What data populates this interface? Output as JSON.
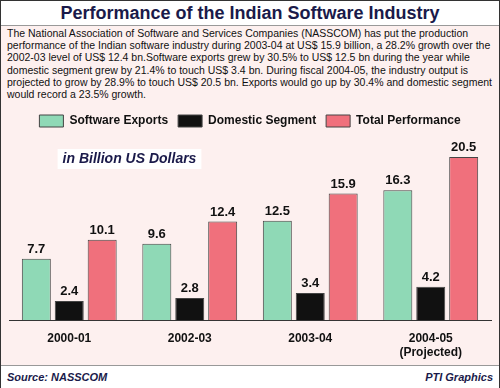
{
  "chart_data": {
    "type": "bar",
    "title": "Performance of the Indian Software Industry",
    "description": "The National Association of Software and Services Companies (NASSCOM) has put the production performance of the Indian software industry during 2003-04 at US$ 15.9 billion, a 28.2% growth over the 2002-03 level of US$ 12.4 bn.Software exports grew by 30.5% to US$ 12.5 bn during the year while domestic segment grew by 21.4% to touch US$ 3.4 bn. During fiscal 2004-05, the industry output is projected to grow by 28.9% to touch US$ 20.5 bn. Exports would go up by 30.4% and domestic segment would record a 23.5% growth.",
    "categories": [
      "2000-01",
      "2002-03",
      "2003-04",
      [
        "2004-05",
        "(Projected)"
      ]
    ],
    "series": [
      {
        "name": "Software Exports",
        "color": "#8fd9b6",
        "values": [
          7.7,
          9.6,
          12.5,
          16.3
        ]
      },
      {
        "name": "Domestic Segment",
        "color": "#111111",
        "values": [
          2.4,
          2.8,
          3.4,
          4.2
        ]
      },
      {
        "name": "Total Performance",
        "color": "#f0707c",
        "values": [
          10.1,
          12.4,
          15.9,
          20.5
        ]
      }
    ],
    "ylim": [
      0,
      23
    ],
    "tick_labels": "x",
    "grid": false,
    "legend": "top",
    "data_labels": true,
    "annotation": "in Billion US Dollars",
    "source": "Source: NASSCOM",
    "credit": "PTI Graphics"
  }
}
